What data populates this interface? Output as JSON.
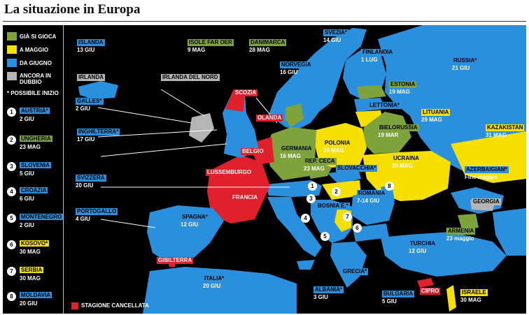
{
  "title": "La situazione in Europa",
  "colors": {
    "green": "#7ea33a",
    "yellow": "#f6e000",
    "blue": "#2a8fdd",
    "gray": "#b5b5b5",
    "red": "#e0212b",
    "black": "#000000"
  },
  "legend": {
    "items": [
      {
        "label": "GIÀ SI GIOCA",
        "color": "#7ea33a"
      },
      {
        "label": "A MAGGIO",
        "color": "#f6e000"
      },
      {
        "label": "DA GIUGNO",
        "color": "#2a8fdd"
      },
      {
        "label": "ANCORA IN DUBBIO",
        "color": "#b5b5b5"
      }
    ],
    "note": "* POSSIBILE INIZIO",
    "numbered": [
      {
        "n": "1",
        "country": "AUSTRIA*",
        "date": "2 GIU",
        "color": "#2a8fdd"
      },
      {
        "n": "2",
        "country": "UNGHERIA",
        "date": "23 MAG",
        "color": "#7ea33a"
      },
      {
        "n": "3",
        "country": "SLOVENIA",
        "date": "5 GIU",
        "color": "#2a8fdd"
      },
      {
        "n": "4",
        "country": "CROAZIA",
        "date": "6 GIU",
        "color": "#2a8fdd"
      },
      {
        "n": "5",
        "country": "MONTENEGRO",
        "date": "2 GIU",
        "color": "#2a8fdd"
      },
      {
        "n": "6",
        "country": "KOSOVO*",
        "date": "30 MAG",
        "color": "#f6e000"
      },
      {
        "n": "7",
        "country": "SERBIA",
        "date": "30 MAG",
        "color": "#f6e000"
      },
      {
        "n": "8",
        "country": "MOLDAVIA",
        "date": "20 GIU",
        "color": "#2a8fdd"
      }
    ],
    "cancelled": "STAGIONE CANCELLATA"
  },
  "labels": [
    {
      "name": "ISLANDA",
      "date": "13 GIU",
      "color": "#2a8fdd"
    },
    {
      "name": "ISOLE FAR OER",
      "date": "9 MAG",
      "color": "#7ea33a"
    },
    {
      "name": "DANIMARCA",
      "date": "28 MAG",
      "color": "#7ea33a"
    },
    {
      "name": "SVEZIA*",
      "date": "14 GIU",
      "color": "#2a8fdd"
    },
    {
      "name": "NORVEGIA",
      "date": "16 GIU",
      "color": "#2a8fdd"
    },
    {
      "name": "FINLANDIA",
      "date": "1 LUG",
      "color": "#2a8fdd"
    },
    {
      "name": "RUSSIA*",
      "date": "21 GIU",
      "color": "#2a8fdd"
    },
    {
      "name": "IRLANDA",
      "date": "",
      "color": "#b5b5b5"
    },
    {
      "name": "IRLANDA DEL NORD",
      "date": "",
      "color": "#b5b5b5"
    },
    {
      "name": "SCOZIA",
      "date": "",
      "color": "#e0212b"
    },
    {
      "name": "ESTONIA",
      "date": "19 MAG",
      "color": "#7ea33a"
    },
    {
      "name": "GALLES*",
      "date": "2 GIU",
      "color": "#2a8fdd"
    },
    {
      "name": "LETTONIA*",
      "date": "",
      "color": "#2a8fdd"
    },
    {
      "name": "LITUANIA",
      "date": "29 MAG",
      "color": "#f6e000"
    },
    {
      "name": "OLANDA",
      "date": "",
      "color": "#e0212b"
    },
    {
      "name": "BIELORUSSIA",
      "date": "19 MAR",
      "color": "#7ea33a"
    },
    {
      "name": "KAZAKISTAN",
      "date": "31 MAG",
      "color": "#f6e000"
    },
    {
      "name": "INGHILTERRA*",
      "date": "17 GIU",
      "color": "#2a8fdd"
    },
    {
      "name": "POLONIA",
      "date": "29 MAG",
      "color": "#f6e000"
    },
    {
      "name": "BELGIO",
      "date": "",
      "color": "#e0212b"
    },
    {
      "name": "GERMANIA",
      "date": "16 MAG",
      "color": "#7ea33a"
    },
    {
      "name": "UCRAINA",
      "date": "30 MAG",
      "color": "#f6e000"
    },
    {
      "name": "REP. CECA",
      "date": "23 MAG",
      "color": "#7ea33a"
    },
    {
      "name": "SLOVACCHIA*",
      "date": "",
      "color": "#2a8fdd"
    },
    {
      "name": "LUSSEMBURGO",
      "date": "",
      "color": "#e0212b"
    },
    {
      "name": "AZERBAIGIAN*",
      "date": "Fine maggio",
      "color": "#2a8fdd"
    },
    {
      "name": "SVIZZERA",
      "date": "20 GIU",
      "color": "#2a8fdd"
    },
    {
      "name": "ROMANIA",
      "date": "7-14 GIU",
      "color": "#2a8fdd"
    },
    {
      "name": "FRANCIA",
      "date": "",
      "color": "#e0212b"
    },
    {
      "name": "GEORGIA",
      "date": "",
      "color": "#b5b5b5"
    },
    {
      "name": "BOSNIA E.*",
      "date": "",
      "color": "#2a8fdd"
    },
    {
      "name": "PORTOGALLO",
      "date": "4 GIU",
      "color": "#2a8fdd"
    },
    {
      "name": "SPAGNA*",
      "date": "12 GIU",
      "color": "#2a8fdd"
    },
    {
      "name": "ARMENIA",
      "date": "23 maggio",
      "color": "#7ea33a"
    },
    {
      "name": "TURCHIA",
      "date": "12 GIU",
      "color": "#2a8fdd"
    },
    {
      "name": "GIBILTERRA",
      "date": "",
      "color": "#e0212b"
    },
    {
      "name": "GRECIA*",
      "date": "",
      "color": "#2a8fdd"
    },
    {
      "name": "ITALIA*",
      "date": "20 GIU",
      "color": "#2a8fdd"
    },
    {
      "name": "ALBANIA*",
      "date": "3 GIU",
      "color": "#2a8fdd"
    },
    {
      "name": "BULGARIA",
      "date": "5 GIU",
      "color": "#2a8fdd"
    },
    {
      "name": "CIPRO",
      "date": "",
      "color": "#e0212b"
    },
    {
      "name": "ISRAELE",
      "date": "30 MAG",
      "color": "#f6e000"
    }
  ],
  "map_markers": [
    "1",
    "2",
    "3",
    "4",
    "5",
    "6",
    "7",
    "8"
  ]
}
